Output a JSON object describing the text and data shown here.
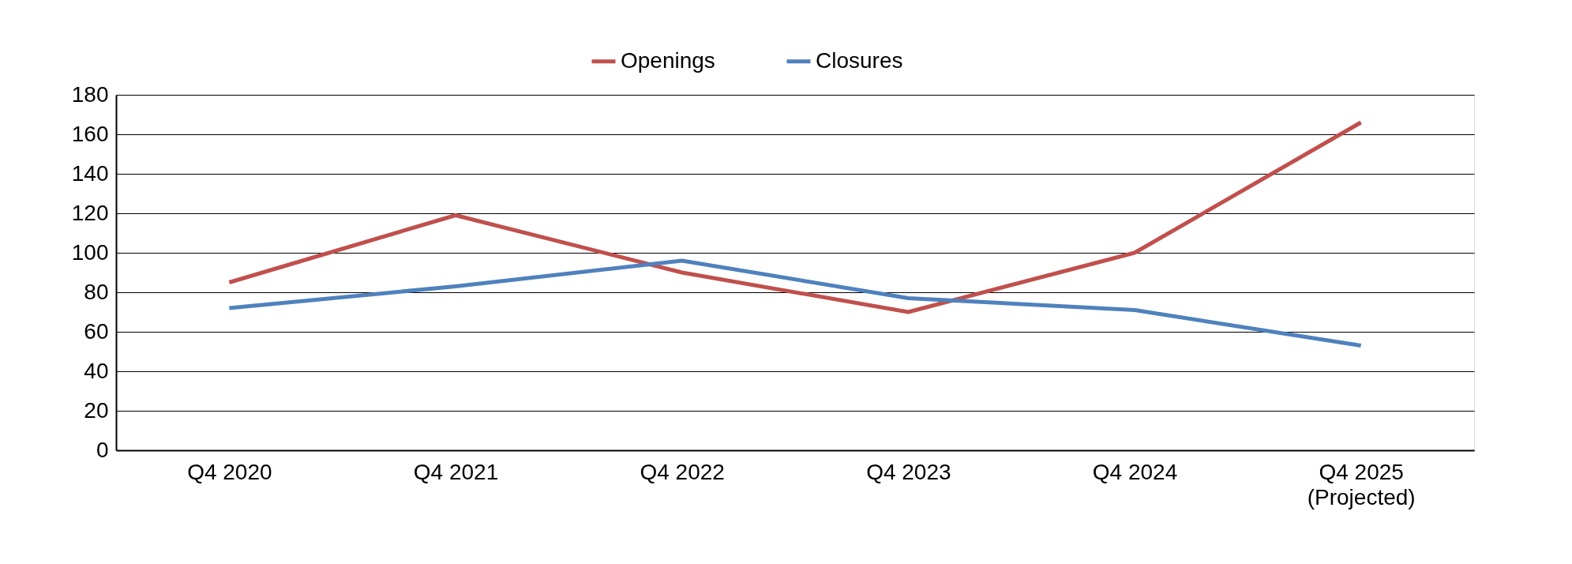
{
  "chart_data": {
    "type": "line",
    "categories": [
      "Q4 2020",
      "Q4 2021",
      "Q4 2022",
      "Q4 2023",
      "Q4 2024",
      "Q4 2025\n(Projected)"
    ],
    "series": [
      {
        "name": "Openings",
        "color": "#c0504d",
        "values": [
          85,
          119,
          90,
          70,
          100,
          166
        ]
      },
      {
        "name": "Closures",
        "color": "#4f81bd",
        "values": [
          72,
          83,
          96,
          77,
          71,
          53
        ]
      }
    ],
    "ylim": [
      0,
      180
    ],
    "yticks": [
      0,
      20,
      40,
      60,
      80,
      100,
      120,
      140,
      160,
      180
    ],
    "grid": "y",
    "legend": "top",
    "marker": "none",
    "line_style": "solid"
  }
}
